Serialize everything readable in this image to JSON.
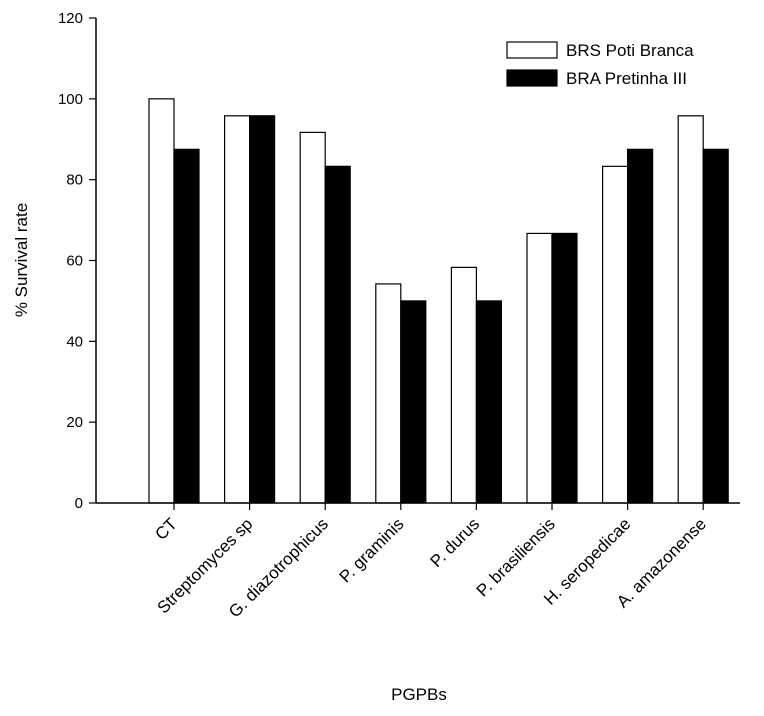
{
  "chart_data": {
    "type": "bar",
    "title": "",
    "xlabel": "PGPBs",
    "ylabel": "% Survival rate",
    "ylim": [
      0,
      120
    ],
    "yticks": [
      "0",
      "20",
      "40",
      "60",
      "80",
      "100",
      "120"
    ],
    "categories": [
      "CT",
      "Streptomyces sp",
      "G. diazotrophicus",
      "P. graminis",
      "P. durus",
      "P. brasiliensis",
      "H. seropedicae",
      "A. amazonense"
    ],
    "series": [
      {
        "name": "BRS Poti Branca",
        "color": "#ffffff",
        "values": [
          100,
          95.8,
          91.7,
          54.2,
          58.3,
          66.7,
          83.3,
          95.8
        ]
      },
      {
        "name": "BRA Pretinha III",
        "color": "#000000",
        "values": [
          87.5,
          95.8,
          83.3,
          50,
          50,
          66.7,
          87.5,
          87.5
        ]
      }
    ],
    "grid": false,
    "legend_position": "top-right"
  }
}
